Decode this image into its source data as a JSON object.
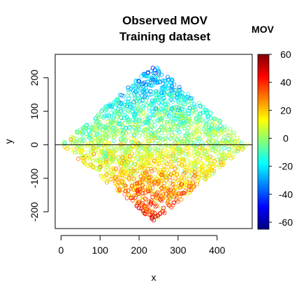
{
  "chart_data": {
    "type": "scatter",
    "title": "Observed MOV",
    "subtitle": "Training dataset",
    "xlabel": "x",
    "ylabel": "y",
    "xlim": [
      -15,
      490
    ],
    "ylim": [
      -250,
      270
    ],
    "x_ticks": [
      0,
      100,
      200,
      300,
      400
    ],
    "y_ticks": [
      -200,
      -100,
      0,
      100,
      200
    ],
    "hline_y": 0,
    "grid": false,
    "marker": "open-circle",
    "point_region": {
      "shape": "diamond",
      "left": [
        0,
        0
      ],
      "top": [
        240,
        240
      ],
      "right": [
        480,
        0
      ],
      "bottom": [
        240,
        -230
      ]
    },
    "value_trend": "values tend to be negative (blue) in the upper half and positive (yellow-red) in the lower half",
    "legend": {
      "title": "MOV",
      "placement": "right",
      "range": [
        -65,
        60
      ],
      "ticks": [
        60,
        40,
        20,
        0,
        -20,
        -40,
        -60
      ],
      "colormap": [
        "#00007F",
        "#0000FF",
        "#007FFF",
        "#00FFFF",
        "#7FFF7F",
        "#FFFF00",
        "#FF7F00",
        "#FF0000",
        "#7F0000"
      ]
    }
  }
}
